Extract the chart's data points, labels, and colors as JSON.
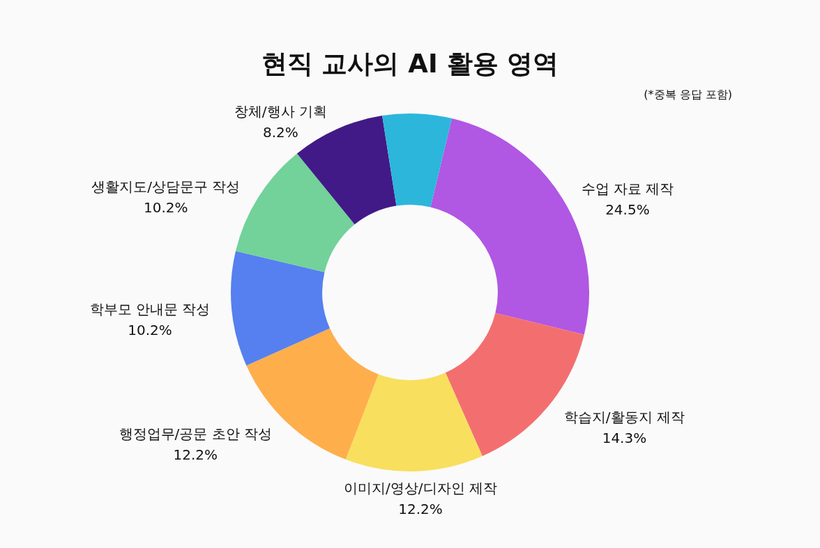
{
  "chart_data": {
    "type": "donut",
    "title": "현직 교사의 AI 활용 영역",
    "annotations": [
      "(*중복 응답 포함)"
    ],
    "categories": [
      "수업 자료 제작",
      "학습지/활동지 제작",
      "이미지/영상/디자인 제작",
      "행정업무/공문 초안 작성",
      "학부모 안내문 작성",
      "생활지도/상담문구 작성",
      "창체/행사 기획",
      null
    ],
    "values": [
      24.5,
      14.3,
      12.2,
      12.2,
      10.2,
      10.2,
      8.2,
      6.1
    ],
    "colors": [
      "#b057e3",
      "#f36f6f",
      "#f8df5e",
      "#ffae4c",
      "#5680ef",
      "#72d29a",
      "#411a87",
      "#2cb6db"
    ],
    "value_labels": [
      "24.5%",
      "14.3%",
      "12.2%",
      "12.2%",
      "10.2%",
      "10.2%",
      "8.2%",
      null
    ]
  }
}
